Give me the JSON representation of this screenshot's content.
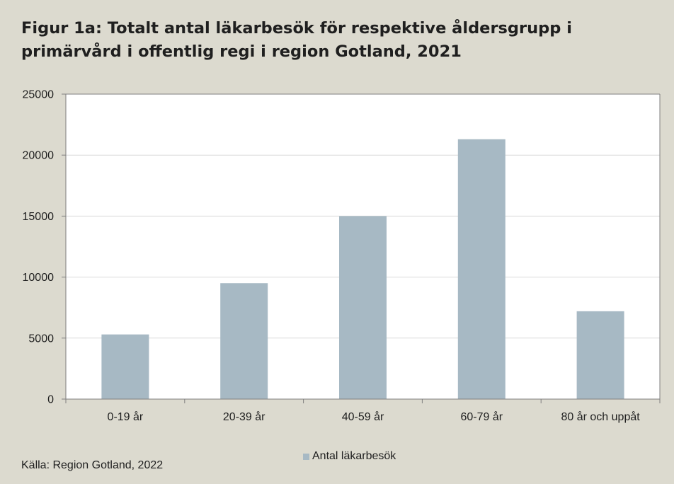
{
  "chart_data": {
    "type": "bar",
    "title": "Figur 1a: Totalt antal läkarbesök för respektive åldersgrupp i primärvård i offentlig regi i region Gotland, 2021",
    "categories": [
      "0-19 år",
      "20-39 år",
      "40-59 år",
      "60-79 år",
      "80 år och uppåt"
    ],
    "series": [
      {
        "name": "Antal läkarbesök",
        "values": [
          5300,
          9500,
          15000,
          21300,
          7200
        ],
        "color": "#a7b9c4"
      }
    ],
    "ylim": [
      0,
      25000
    ],
    "yticks": [
      "0",
      "5000",
      "10000",
      "15000",
      "20000",
      "25000"
    ],
    "xlabel": "",
    "ylabel": "",
    "grid": true,
    "legend_position": "bottom",
    "colors": {
      "plot_background": "#ffffff",
      "figure_background": "#dcdacf",
      "gridline": "#d9d9d9",
      "axis": "#7f7f7f"
    }
  },
  "source": "Källa: Region Gotland, 2022"
}
